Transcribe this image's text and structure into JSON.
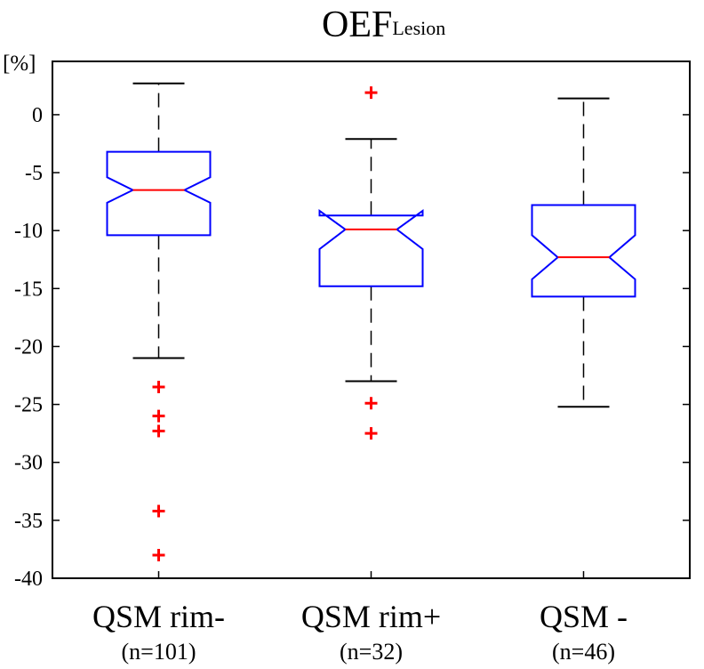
{
  "chart_data": {
    "type": "boxplot",
    "title": "OEF",
    "title_subscript": "Lesion",
    "ylabel": "[%]",
    "ylim": [
      -40,
      4.6
    ],
    "yticks": [
      0,
      -5,
      -10,
      -15,
      -20,
      -25,
      -30,
      -35,
      -40
    ],
    "ytick_labels": [
      "0",
      "-5",
      "-10",
      "-15",
      "-20",
      "-25",
      "-30",
      "-35",
      "-40"
    ],
    "notched": true,
    "colors": {
      "box": "#0000ff",
      "median": "#ff0000",
      "whisker": "#000000",
      "outlier": "#ff0000"
    },
    "groups": [
      {
        "name": "QSM rim-",
        "n_label": "(n=101)",
        "q1": -10.4,
        "median": -6.5,
        "q3": -3.2,
        "notch_low": -7.6,
        "notch_high": -5.4,
        "whisker_low": -21.0,
        "whisker_high": 2.7,
        "outliers": [
          -23.5,
          -26.0,
          -27.3,
          -34.2,
          -38.0
        ]
      },
      {
        "name": "QSM rim+",
        "n_label": "(n=32)",
        "q1": -14.8,
        "median": -9.9,
        "q3": -8.7,
        "notch_low": -11.6,
        "notch_high": -8.3,
        "whisker_low": -23.0,
        "whisker_high": -2.1,
        "outliers": [
          1.9,
          -24.9,
          -27.5
        ]
      },
      {
        "name": "QSM -",
        "n_label": "(n=46)",
        "q1": -15.7,
        "median": -12.3,
        "q3": -7.8,
        "notch_low": -14.2,
        "notch_high": -10.4,
        "whisker_low": -25.2,
        "whisker_high": 1.4,
        "outliers": []
      }
    ]
  }
}
